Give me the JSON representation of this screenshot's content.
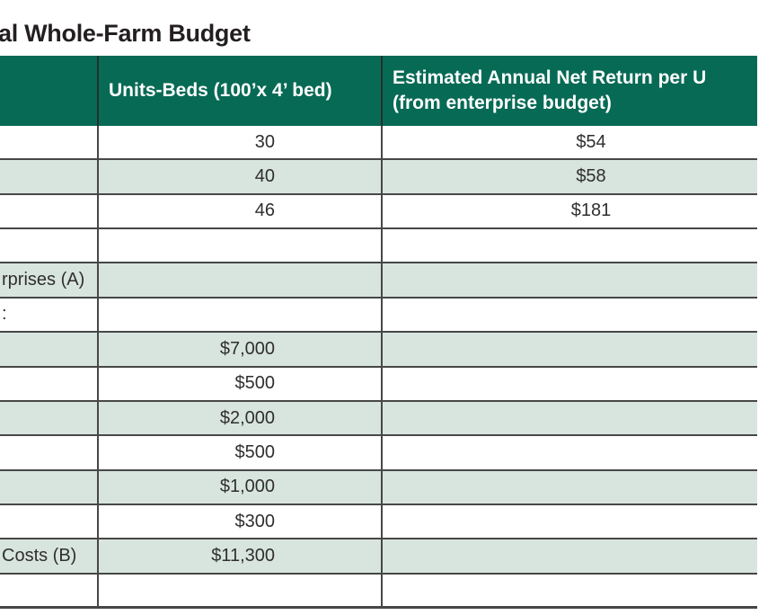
{
  "title": "al Whole-Farm Budget",
  "header": {
    "col1": "",
    "col2": "Units-Beds (100’x 4’ bed)",
    "col3_line1": "Estimated Annual Net Return per U",
    "col3_line2": "(from enterprise budget)"
  },
  "rows": [
    {
      "label": "",
      "units": "30",
      "net_return": "$54",
      "shaded": false
    },
    {
      "label": "",
      "units": "40",
      "net_return": "$58",
      "shaded": true
    },
    {
      "label": "",
      "units": "46",
      "net_return": "$181",
      "shaded": false
    },
    {
      "label": "",
      "units": "",
      "net_return": "",
      "shaded": false
    },
    {
      "label": "rprises (A)",
      "units": "",
      "net_return": "",
      "shaded": true
    },
    {
      "label": ":",
      "units": "",
      "net_return": "",
      "shaded": false
    },
    {
      "label": "",
      "units": "$7,000",
      "net_return": "",
      "shaded": true
    },
    {
      "label": "",
      "units": "$500",
      "net_return": "",
      "shaded": false
    },
    {
      "label": "",
      "units": "$2,000",
      "net_return": "",
      "shaded": true
    },
    {
      "label": "",
      "units": "$500",
      "net_return": "",
      "shaded": false
    },
    {
      "label": "",
      "units": "$1,000",
      "net_return": "",
      "shaded": true
    },
    {
      "label": "",
      "units": "$300",
      "net_return": "",
      "shaded": false
    },
    {
      "label": "Costs (B)",
      "units": "$11,300",
      "net_return": "",
      "shaded": true
    },
    {
      "label": "",
      "units": "",
      "net_return": "",
      "shaded": false
    }
  ],
  "colors": {
    "header_bg": "#076a55",
    "row_shaded_bg": "#d8e5de",
    "border": "#474747",
    "text": "#2f2f2f"
  }
}
